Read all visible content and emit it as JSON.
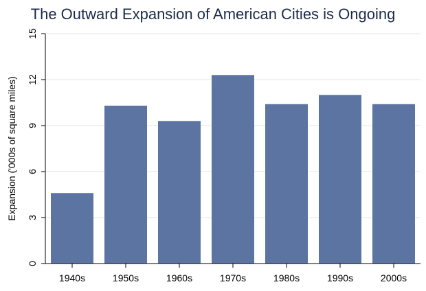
{
  "chart_data": {
    "type": "bar",
    "title": "The Outward Expansion of American Cities is Ongoing",
    "xlabel": "",
    "ylabel": "Expansion ('000s of square miles)",
    "categories": [
      "1940s",
      "1950s",
      "1960s",
      "1970s",
      "1980s",
      "1990s",
      "2000s"
    ],
    "values": [
      4.6,
      10.3,
      9.3,
      12.3,
      10.4,
      11.0,
      10.4
    ],
    "ylim": [
      0,
      15
    ],
    "yticks": [
      0,
      3,
      6,
      9,
      12,
      15
    ],
    "grid": true,
    "bar_color": "#5b74a1",
    "grid_color": "#e6e6e6",
    "title_color": "#1c2a4a"
  }
}
